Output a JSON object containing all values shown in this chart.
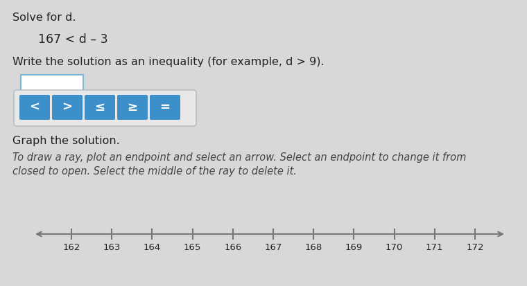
{
  "background_color": "#d8d8d8",
  "title_line1": "Solve for d.",
  "equation": "167 < d – 3",
  "instruction1": "Write the solution as an inequality (for example, d > 9).",
  "instruction2": "Graph the solution.",
  "instruction3_line1": "To draw a ray, plot an endpoint and select an arrow. Select an endpoint to change it from",
  "instruction3_line2": "closed to open. Select the middle of the ray to delete it.",
  "button_labels": [
    "<",
    ">",
    "≤",
    "≥",
    "="
  ],
  "button_color": "#3d8fca",
  "button_text_color": "#ffffff",
  "number_line_ticks": [
    162,
    163,
    164,
    165,
    166,
    167,
    168,
    169,
    170,
    171,
    172
  ],
  "number_line_color": "#777777",
  "text_color_dark": "#222222",
  "text_color_italic": "#444444",
  "input_box_border": "#7ab8d8",
  "panel_bg": "#e8e8e8",
  "panel_border": "#b0b8c0"
}
